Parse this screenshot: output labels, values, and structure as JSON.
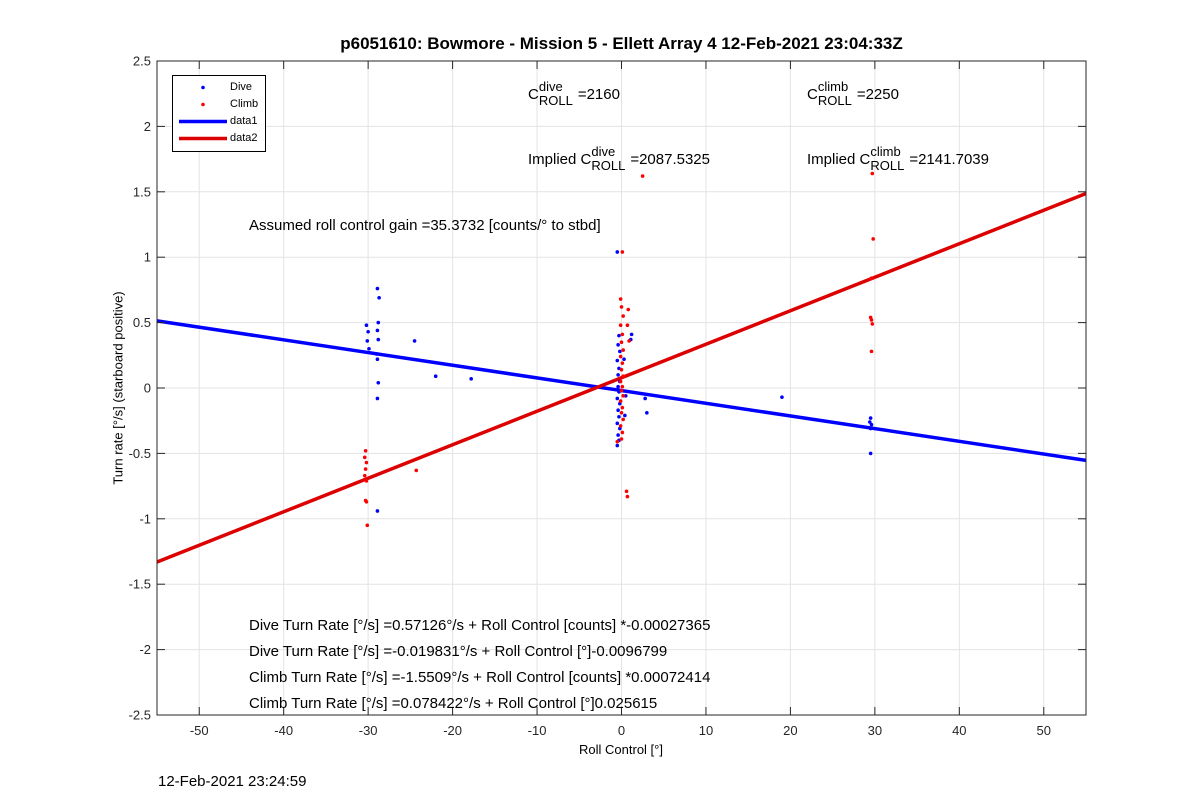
{
  "chart_data": {
    "type": "scatter",
    "title": "p6051610: Bowmore - Mission 5 - Ellett Array 4 12-Feb-2021 23:04:33Z",
    "xlabel": "Roll Control [°]",
    "ylabel": "Turn rate [°/s] (starboard positive)",
    "xlim": [
      -55,
      55
    ],
    "ylim": [
      -2.5,
      2.5
    ],
    "xticks": [
      -50,
      -40,
      -30,
      -20,
      -10,
      0,
      10,
      20,
      30,
      40,
      50
    ],
    "xtick_labels": [
      "-50",
      "-40",
      "-30",
      "-20",
      "-10",
      "0",
      "10",
      "20",
      "30",
      "40",
      "50"
    ],
    "yticks": [
      -2.5,
      -2,
      -1.5,
      -1,
      -0.5,
      0,
      0.5,
      1,
      1.5,
      2,
      2.5
    ],
    "ytick_labels": [
      "-2.5",
      "-2",
      "-1.5",
      "-1",
      "-0.5",
      "0",
      "0.5",
      "1",
      "1.5",
      "2",
      "2.5"
    ],
    "grid": true,
    "legend_position": "top-left",
    "series": [
      {
        "name": "Dive",
        "kind": "points",
        "color": "#0000ff",
        "points": [
          [
            -30.2,
            0.48
          ],
          [
            -30.0,
            0.43
          ],
          [
            -30.1,
            0.36
          ],
          [
            -29.9,
            0.3
          ],
          [
            -28.9,
            0.76
          ],
          [
            -28.7,
            0.69
          ],
          [
            -28.8,
            0.5
          ],
          [
            -28.9,
            0.44
          ],
          [
            -28.8,
            0.37
          ],
          [
            -29.0,
            0.26
          ],
          [
            -28.9,
            0.22
          ],
          [
            -28.8,
            0.04
          ],
          [
            -28.9,
            -0.08
          ],
          [
            -28.9,
            -0.94
          ],
          [
            -24.5,
            0.36
          ],
          [
            -22.0,
            0.09
          ],
          [
            -17.8,
            0.07
          ],
          [
            -0.5,
            1.04
          ],
          [
            -0.3,
            0.4
          ],
          [
            -0.4,
            0.33
          ],
          [
            -0.2,
            0.28
          ],
          [
            -0.5,
            0.21
          ],
          [
            -0.3,
            0.15
          ],
          [
            -0.4,
            0.1
          ],
          [
            -0.2,
            0.05
          ],
          [
            -0.4,
            0.01
          ],
          [
            -0.3,
            -0.03
          ],
          [
            -0.5,
            -0.08
          ],
          [
            -0.2,
            -0.12
          ],
          [
            -0.4,
            -0.17
          ],
          [
            -0.3,
            -0.22
          ],
          [
            -0.5,
            -0.27
          ],
          [
            -0.2,
            -0.31
          ],
          [
            -0.4,
            -0.36
          ],
          [
            -0.3,
            -0.4
          ],
          [
            -0.5,
            -0.44
          ],
          [
            0.3,
            0.22
          ],
          [
            0.5,
            -0.06
          ],
          [
            0.4,
            -0.21
          ],
          [
            1.2,
            0.41
          ],
          [
            1.1,
            0.37
          ],
          [
            2.8,
            -0.08
          ],
          [
            3.0,
            -0.19
          ],
          [
            19.0,
            -0.07
          ],
          [
            29.5,
            -0.23
          ],
          [
            29.4,
            -0.26
          ],
          [
            29.6,
            -0.28
          ],
          [
            29.5,
            -0.31
          ],
          [
            29.5,
            -0.5
          ]
        ]
      },
      {
        "name": "Climb",
        "kind": "points",
        "color": "#ff0000",
        "points": [
          [
            -30.3,
            -0.48
          ],
          [
            -30.4,
            -0.53
          ],
          [
            -30.2,
            -0.57
          ],
          [
            -30.3,
            -0.62
          ],
          [
            -30.4,
            -0.67
          ],
          [
            -30.2,
            -0.71
          ],
          [
            -30.3,
            -0.86
          ],
          [
            -30.2,
            -0.87
          ],
          [
            -30.1,
            -1.05
          ],
          [
            -24.3,
            -0.63
          ],
          [
            -0.1,
            0.68
          ],
          [
            0.0,
            0.62
          ],
          [
            0.2,
            0.55
          ],
          [
            -0.1,
            0.48
          ],
          [
            0.1,
            0.41
          ],
          [
            0.0,
            0.35
          ],
          [
            0.2,
            0.29
          ],
          [
            -0.1,
            0.24
          ],
          [
            0.1,
            0.19
          ],
          [
            0.0,
            0.14
          ],
          [
            0.2,
            0.09
          ],
          [
            -0.1,
            0.05
          ],
          [
            0.1,
            0.01
          ],
          [
            0.0,
            -0.02
          ],
          [
            0.2,
            -0.06
          ],
          [
            -0.1,
            -0.1
          ],
          [
            0.1,
            -0.15
          ],
          [
            0.0,
            -0.19
          ],
          [
            0.2,
            -0.24
          ],
          [
            -0.1,
            -0.29
          ],
          [
            0.1,
            -0.34
          ],
          [
            0.0,
            -0.39
          ],
          [
            -0.5,
            -0.41
          ],
          [
            0.1,
            1.04
          ],
          [
            0.8,
            0.6
          ],
          [
            0.7,
            0.48
          ],
          [
            0.9,
            0.36
          ],
          [
            0.6,
            -0.79
          ],
          [
            0.7,
            -0.83
          ],
          [
            2.5,
            1.62
          ],
          [
            29.7,
            1.64
          ],
          [
            29.8,
            1.14
          ],
          [
            29.6,
            0.84
          ],
          [
            29.5,
            0.54
          ],
          [
            29.6,
            0.52
          ],
          [
            29.7,
            0.49
          ],
          [
            29.6,
            0.28
          ]
        ]
      },
      {
        "name": "data1",
        "kind": "line",
        "color": "#0000ff",
        "points": [
          [
            -55,
            0.5135
          ],
          [
            55,
            -0.5531
          ]
        ]
      },
      {
        "name": "data2",
        "kind": "line",
        "color": "#ff0000",
        "points": [
          [
            -55,
            -1.3305
          ],
          [
            55,
            1.4873
          ]
        ]
      }
    ],
    "annotations": {
      "c_roll_dive": {
        "prefix": "C",
        "sup": "dive",
        "sub": "ROLL",
        "value": "=2160"
      },
      "c_roll_climb": {
        "prefix": "C",
        "sup": "climb",
        "sub": "ROLL",
        "value": "=2250"
      },
      "implied_dive": {
        "prefix": "Implied C",
        "sup": "dive",
        "sub": "ROLL",
        "value": "=2087.5325"
      },
      "implied_climb": {
        "prefix": "Implied C",
        "sup": "climb",
        "sub": "ROLL",
        "value": "=2141.7039"
      },
      "gain": "Assumed roll control gain =35.3732 [counts/° to stbd]",
      "fits": [
        "Dive Turn Rate [°/s] =0.57126°/s + Roll Control [counts] *-0.00027365",
        "Dive Turn Rate [°/s] =-0.019831°/s + Roll Control [°]-0.0096799",
        "Climb Turn Rate [°/s] =-1.5509°/s + Roll Control [counts] *0.00072414",
        "Climb Turn Rate [°/s] =0.078422°/s + Roll Control [°]0.025615"
      ]
    }
  },
  "timestamp": "12-Feb-2021 23:24:59"
}
